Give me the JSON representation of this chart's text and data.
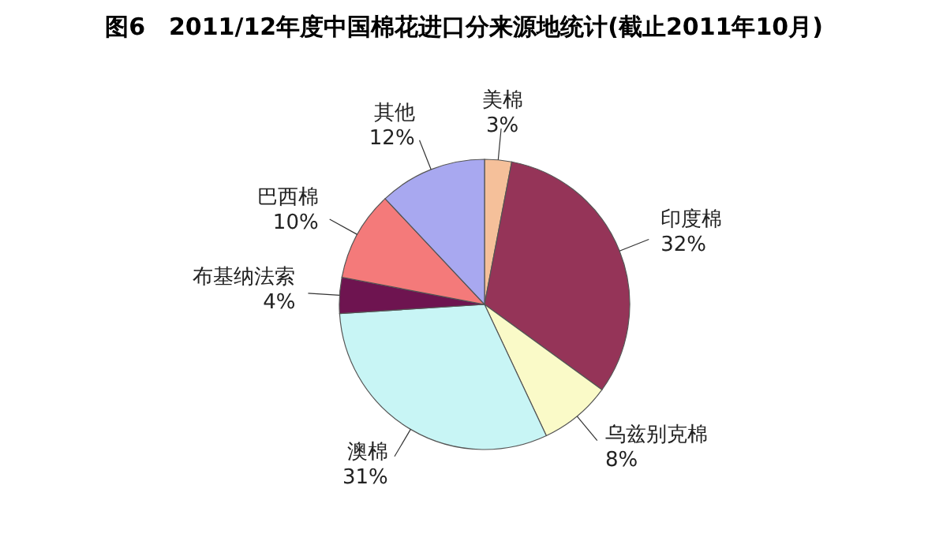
{
  "chart_data": {
    "type": "pie",
    "title": "图6　2011/12年度中国棉花进口分来源地统计(截止2011年10月)",
    "categories": [
      "美棉",
      "印度棉",
      "乌兹别克棉",
      "澳棉",
      "布基纳法索",
      "巴西棉",
      "其他"
    ],
    "values": [
      3,
      32,
      8,
      31,
      4,
      10,
      12
    ],
    "value_labels": [
      "3%",
      "32%",
      "8%",
      "31%",
      "4%",
      "10%",
      "12%"
    ],
    "colors": [
      "#f5c09a",
      "#953458",
      "#fafac8",
      "#c8f5f5",
      "#6e1450",
      "#f47a7a",
      "#a8a8f0"
    ],
    "legend": false
  }
}
